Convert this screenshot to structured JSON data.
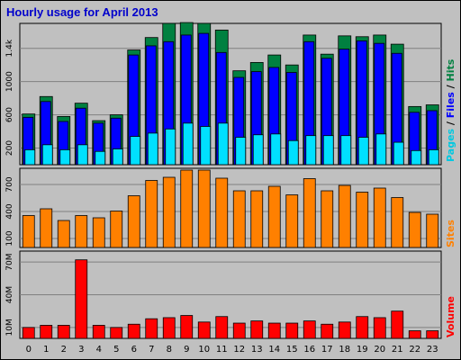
{
  "title": "Hourly usage for April 2013",
  "hours": [
    "0",
    "1",
    "2",
    "3",
    "4",
    "5",
    "6",
    "7",
    "8",
    "9",
    "10",
    "11",
    "12",
    "13",
    "14",
    "15",
    "16",
    "17",
    "18",
    "19",
    "20",
    "21",
    "22",
    "23"
  ],
  "colors": {
    "hits": "#008040",
    "files": "#0000ff",
    "pages": "#00e0ff",
    "sites": "#ff8000",
    "volume": "#ff0000",
    "title": "#0000cc",
    "panel": "#c0c0c0",
    "grid": "#808080"
  },
  "labels": {
    "pages": "Pages",
    "sep1": " / ",
    "files": "Files",
    "sep2": " / ",
    "hits": "Hits",
    "sites": "Sites",
    "volume": "Volume"
  },
  "chart_data": [
    {
      "type": "bar",
      "panel": "hits-files-pages",
      "categories": [
        "0",
        "1",
        "2",
        "3",
        "4",
        "5",
        "6",
        "7",
        "8",
        "9",
        "10",
        "11",
        "12",
        "13",
        "14",
        "15",
        "16",
        "17",
        "18",
        "19",
        "20",
        "21",
        "22",
        "23"
      ],
      "ylim": [
        0,
        1700
      ],
      "yticks": [
        "200",
        "600",
        "1000",
        "1.4k"
      ],
      "ytick_values": [
        200,
        600,
        1000,
        1400
      ],
      "series": [
        {
          "name": "Hits",
          "values": [
            610,
            820,
            580,
            740,
            530,
            600,
            1380,
            1530,
            1700,
            1710,
            1700,
            1620,
            1130,
            1230,
            1320,
            1200,
            1560,
            1330,
            1550,
            1540,
            1560,
            1450,
            700,
            720
          ]
        },
        {
          "name": "Files",
          "values": [
            570,
            760,
            520,
            680,
            500,
            560,
            1320,
            1430,
            1480,
            1560,
            1580,
            1350,
            1050,
            1120,
            1170,
            1110,
            1480,
            1280,
            1390,
            1490,
            1460,
            1340,
            630,
            650
          ]
        },
        {
          "name": "Pages",
          "values": [
            180,
            240,
            180,
            240,
            160,
            190,
            340,
            380,
            430,
            500,
            460,
            500,
            330,
            360,
            370,
            290,
            350,
            350,
            350,
            330,
            370,
            270,
            170,
            180
          ]
        }
      ],
      "grid": true
    },
    {
      "type": "bar",
      "panel": "sites",
      "categories": [
        "0",
        "1",
        "2",
        "3",
        "4",
        "5",
        "6",
        "7",
        "8",
        "9",
        "10",
        "11",
        "12",
        "13",
        "14",
        "15",
        "16",
        "17",
        "18",
        "19",
        "20",
        "21",
        "22",
        "23"
      ],
      "ylim": [
        0,
        880
      ],
      "yticks": [
        "100",
        "400",
        "700"
      ],
      "ytick_values": [
        100,
        400,
        700
      ],
      "series": [
        {
          "name": "Sites",
          "values": [
            355,
            430,
            300,
            355,
            330,
            405,
            575,
            745,
            780,
            860,
            860,
            770,
            630,
            630,
            680,
            585,
            765,
            630,
            690,
            615,
            660,
            555,
            390,
            370
          ]
        }
      ],
      "grid": true
    },
    {
      "type": "bar",
      "panel": "volume",
      "categories": [
        "0",
        "1",
        "2",
        "3",
        "4",
        "5",
        "6",
        "7",
        "8",
        "9",
        "10",
        "11",
        "12",
        "13",
        "14",
        "15",
        "16",
        "17",
        "18",
        "19",
        "20",
        "21",
        "22",
        "23"
      ],
      "ylim": [
        0,
        80
      ],
      "yticks": [
        "10M",
        "40M",
        "70M"
      ],
      "ytick_values": [
        10,
        40,
        70
      ],
      "units": "MB",
      "series": [
        {
          "name": "Volume",
          "values": [
            10,
            12,
            12,
            72,
            12,
            10,
            13,
            18,
            19,
            21,
            15,
            20,
            14,
            16,
            14,
            14,
            16,
            13,
            15,
            20,
            19,
            25,
            7,
            7
          ]
        }
      ],
      "grid": true
    }
  ]
}
